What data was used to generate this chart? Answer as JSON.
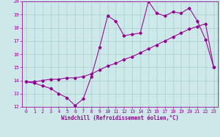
{
  "xlabel": "Windchill (Refroidissement éolien,°C)",
  "ylabel": "",
  "background_color": "#cce8e8",
  "line_color": "#990099",
  "grid_color": "#aacccc",
  "xlim": [
    -0.5,
    23.5
  ],
  "ylim": [
    12,
    20
  ],
  "xticks": [
    0,
    1,
    2,
    3,
    4,
    5,
    6,
    7,
    8,
    9,
    10,
    11,
    12,
    13,
    14,
    15,
    16,
    17,
    18,
    19,
    20,
    21,
    22,
    23
  ],
  "yticks": [
    12,
    13,
    14,
    15,
    16,
    17,
    18,
    19,
    20
  ],
  "line1_x": [
    0,
    1,
    2,
    3,
    4,
    5,
    6,
    7,
    8,
    9,
    10,
    11,
    12,
    13,
    14,
    15,
    16,
    17,
    18,
    19,
    20,
    21,
    22,
    23
  ],
  "line1_y": [
    13.9,
    13.8,
    13.6,
    13.4,
    13.0,
    12.7,
    12.1,
    12.6,
    14.3,
    16.5,
    18.9,
    18.5,
    17.4,
    17.5,
    17.6,
    20.0,
    19.1,
    18.9,
    19.2,
    19.1,
    19.5,
    18.5,
    17.1,
    15.0
  ],
  "line2_x": [
    0,
    1,
    2,
    3,
    4,
    5,
    6,
    7,
    8,
    9,
    10,
    11,
    12,
    13,
    14,
    15,
    16,
    17,
    18,
    19,
    20,
    21,
    22,
    23
  ],
  "line2_y": [
    13.9,
    13.9,
    14.0,
    14.1,
    14.1,
    14.2,
    14.2,
    14.3,
    14.5,
    14.8,
    15.1,
    15.3,
    15.6,
    15.8,
    16.1,
    16.4,
    16.7,
    17.0,
    17.3,
    17.6,
    17.9,
    18.1,
    18.3,
    15.0
  ],
  "marker": "D",
  "marker_size": 2.0,
  "line_width": 0.8,
  "tick_fontsize": 5.0,
  "label_fontsize": 5.5
}
